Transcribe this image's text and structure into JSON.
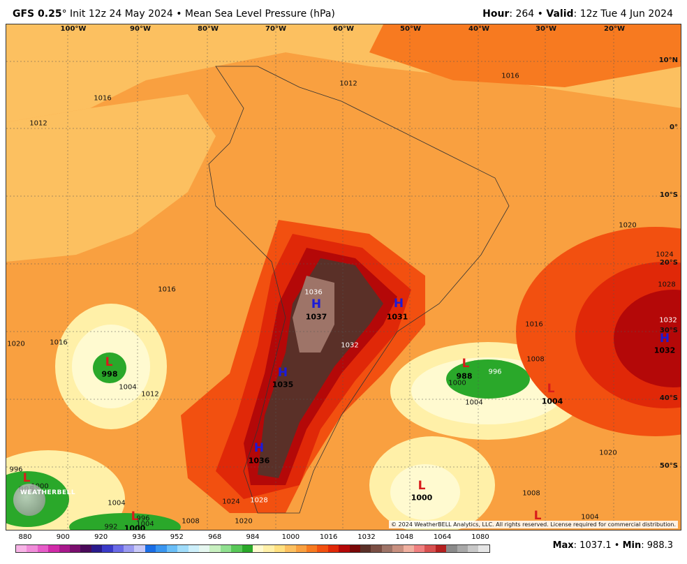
{
  "header": {
    "model": "GFS 0.25",
    "degree": "°",
    "init": " Init 12z 24 May 2024",
    "sep1": " • ",
    "field": "Mean Sea Level Pressure (hPa)",
    "hour_label": "Hour",
    "hour_value": ": 264",
    "sep2": " • ",
    "valid_label": "Valid",
    "valid_value": ": 12z Tue 4 Jun 2024"
  },
  "map": {
    "longitudes": [
      "100°W",
      "90°W",
      "80°W",
      "70°W",
      "60°W",
      "50°W",
      "40°W",
      "30°W",
      "20°W"
    ],
    "latitudes": [
      "10°N",
      "0°",
      "10°S",
      "20°S",
      "30°S",
      "40°S",
      "50°S"
    ],
    "pressure_centers": [
      {
        "type": "H",
        "value": "1037"
      },
      {
        "type": "H",
        "value": "1031"
      },
      {
        "type": "H",
        "value": "1035"
      },
      {
        "type": "H",
        "value": "1036"
      },
      {
        "type": "H",
        "value": "1032"
      },
      {
        "type": "L",
        "value": "998"
      },
      {
        "type": "L",
        "value": "988"
      },
      {
        "type": "L",
        "value": "1004"
      },
      {
        "type": "L",
        "value": "995"
      },
      {
        "type": "L",
        "value": "1000"
      },
      {
        "type": "L",
        "value": "1000"
      },
      {
        "type": "L",
        "value": ""
      }
    ],
    "isobar_labels": [
      "1016",
      "1012",
      "1012",
      "1016",
      "1016",
      "1020",
      "1024",
      "1028",
      "1020",
      "1016",
      "1012",
      "1004",
      "1036",
      "1032",
      "1024",
      "1028",
      "1020",
      "1008",
      "1004",
      "996",
      "1000",
      "1004",
      "1008",
      "1016",
      "1032",
      "1020",
      "1008",
      "1004",
      "996",
      "1000",
      "1004",
      "992",
      "996"
    ],
    "copyright": "© 2024 WeatherBELL Analytics, LLC. All rights reserved. License required for commercial distribution.",
    "logo_text": "WEATHERBELL"
  },
  "legend": {
    "ticks": [
      "880",
      "900",
      "920",
      "936",
      "952",
      "968",
      "984",
      "1000",
      "1016",
      "1032",
      "1048",
      "1064",
      "1080"
    ],
    "colors": [
      "#f7b3e6",
      "#f08cd9",
      "#e65cc8",
      "#d02aa8",
      "#a8188c",
      "#7a0e6e",
      "#4a0a5a",
      "#2a1a8c",
      "#3a3ac8",
      "#6a6ae6",
      "#9a9af0",
      "#c8c8f7",
      "#1a6ee6",
      "#3a96f0",
      "#6abef7",
      "#a0dcfa",
      "#cdeffa",
      "#e6f7f0",
      "#c8f0c0",
      "#90e090",
      "#58c858",
      "#2aa82a",
      "#fffad0",
      "#fff0a8",
      "#ffe080",
      "#fcc060",
      "#f9a040",
      "#f77a20",
      "#f25010",
      "#e02808",
      "#b40808",
      "#7a0808",
      "#5a3028",
      "#7a4e44",
      "#9e7468",
      "#c89080",
      "#f0b0a0",
      "#f08080",
      "#d85050",
      "#b42020",
      "#8a8a8a",
      "#a8a8a8",
      "#c8c8c8",
      "#e6e6e6"
    ],
    "max_label": "Max",
    "max_value": ": 1037.1",
    "min_label": "Min",
    "min_value": ": 988.3",
    "sep": " • "
  }
}
